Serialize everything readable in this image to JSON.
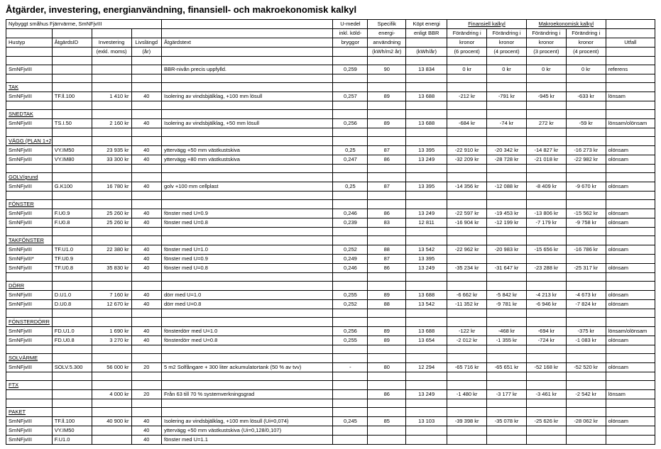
{
  "title": "Åtgärder, investering, energianvändning, finansiell- och makroekonomisk kalkyl",
  "left_group": "Nybyggt småhus Fjärrvärme, SmNFjvIII",
  "fin_group": "Finansiell kalkyl",
  "makro_group": "Makroekonomisk kalkyl",
  "headers": {
    "hustyp": "Hustyp",
    "atgID": "ÅtgärdsID",
    "invest1": "Investering",
    "invest2": "(exkl. moms)",
    "livs1": "Livslängd",
    "livs2": "(år)",
    "atgtext": "Åtgärdstext",
    "umedel1": "U-medel",
    "umedel2": "inkl. köld-",
    "umedel3": "bryggor",
    "spec1": "Specifik",
    "spec2": "energi-",
    "spec3": "användning",
    "spec4": "(kWh/m2 år)",
    "kopt1": "Köpt energi",
    "kopt2": "enligt BBR",
    "kopt3": "(kWh/år)",
    "for1": "Förändring i",
    "for2": "kronor",
    "p6": "(6 procent)",
    "p4": "(4 procent)",
    "p3": "(3 procent)",
    "utfall": "Utfall"
  },
  "rows": [
    {
      "type": "data",
      "c": [
        "SmNFjvIII",
        "",
        "",
        "",
        "BBR-nivån precis uppfylld.",
        "0,259",
        "90",
        "13 834",
        "0 kr",
        "0 kr",
        "0 kr",
        "0 kr",
        "referens"
      ]
    },
    {
      "type": "blank"
    },
    {
      "type": "section",
      "label": "TAK"
    },
    {
      "type": "data",
      "c": [
        "SmNFjvIII",
        "TF.ll.100",
        "1 410 kr",
        "40",
        "Isolering av vindsbjälklag, +100 mm lösull",
        "0,257",
        "89",
        "13 688",
        "-212 kr",
        "-791 kr",
        "-945 kr",
        "-633 kr",
        "lönsam"
      ]
    },
    {
      "type": "blank"
    },
    {
      "type": "section",
      "label": "SNEDTAK"
    },
    {
      "type": "data",
      "c": [
        "SmNFjvIII",
        "TS.I.50",
        "2 160 kr",
        "40",
        "Isolering av vindsbjälklag, +50 mm lösull",
        "0,256",
        "89",
        "13 688",
        "-684 kr",
        "-74 kr",
        "272 kr",
        "-59 kr",
        "lönsam/olönsam"
      ]
    },
    {
      "type": "blank"
    },
    {
      "type": "section",
      "label": "VÄGG (PLAN 1+2)"
    },
    {
      "type": "data",
      "c": [
        "SmNFjvIII",
        "VY.IM50",
        "23 935 kr",
        "40",
        "yttervägg +50 mm västkustskiva",
        "0,25",
        "87",
        "13 395",
        "-22 910 kr",
        "-20 342 kr",
        "-14 827 kr",
        "-16 273 kr",
        "olönsam"
      ]
    },
    {
      "type": "data",
      "c": [
        "SmNFjvIII",
        "VY.IM80",
        "33 300 kr",
        "40",
        "yttervägg +80 mm västkustskiva",
        "0,247",
        "86",
        "13 249",
        "-32 209 kr",
        "-28 728 kr",
        "-21 018 kr",
        "-22 982 kr",
        "olönsam"
      ]
    },
    {
      "type": "blank"
    },
    {
      "type": "section",
      "label": "GOLV/grund"
    },
    {
      "type": "data",
      "c": [
        "SmNFjvIII",
        "G.K100",
        "16 780 kr",
        "40",
        "golv +100 mm cellplast",
        "0,25",
        "87",
        "13 395",
        "-14 356 kr",
        "-12 088 kr",
        "-8 409 kr",
        "-9 670 kr",
        "olönsam"
      ]
    },
    {
      "type": "blank"
    },
    {
      "type": "section",
      "label": "FÖNSTER"
    },
    {
      "type": "data",
      "c": [
        "SmNFjvIII",
        "F.U0.9",
        "25 260 kr",
        "40",
        "fönster med U=0.9",
        "0,246",
        "86",
        "13 249",
        "-22 597 kr",
        "-19 453 kr",
        "-13 806 kr",
        "-15 562 kr",
        "olönsam"
      ]
    },
    {
      "type": "data",
      "c": [
        "SmNFjvIII",
        "F.U0.8",
        "25 260 kr",
        "40",
        "fönster med U=0.8",
        "0,239",
        "83",
        "12 811",
        "-16 904 kr",
        "-12 199 kr",
        "-7 179 kr",
        "-9 758 kr",
        "olönsam"
      ]
    },
    {
      "type": "blank"
    },
    {
      "type": "section",
      "label": "TAKFÖNSTER"
    },
    {
      "type": "data",
      "c": [
        "SmNFjvIII",
        "TF.U1.0",
        "22 380 kr",
        "40",
        "fönster med U=1.0",
        "0,252",
        "88",
        "13 542",
        "-22 962 kr",
        "-20 983 kr",
        "-15 656 kr",
        "-16 786 kr",
        "olönsam"
      ]
    },
    {
      "type": "data",
      "c": [
        "SmNFjvIII*",
        "TF.U0.9",
        "",
        "40",
        "fönster med U=0.9",
        "0,249",
        "87",
        "13 395",
        "",
        "",
        "",
        "",
        ""
      ]
    },
    {
      "type": "data",
      "c": [
        "SmNFjvIII",
        "TF.U0.8",
        "35 830 kr",
        "40",
        "fönster med U=0.8",
        "0,246",
        "86",
        "13 249",
        "-35 234 kr",
        "-31 647 kr",
        "-23 288 kr",
        "-25 317 kr",
        "olönsam"
      ]
    },
    {
      "type": "blank"
    },
    {
      "type": "section",
      "label": "DÖRR"
    },
    {
      "type": "data",
      "c": [
        "SmNFjvIII",
        "D.U1.0",
        "7 160 kr",
        "40",
        "dörr med U=1.0",
        "0,255",
        "89",
        "13 688",
        "-6 662 kr",
        "-5 842 kr",
        "-4 213 kr",
        "-4 673 kr",
        "olönsam"
      ]
    },
    {
      "type": "data",
      "c": [
        "SmNFjvIII",
        "D.U0.8",
        "12 670 kr",
        "40",
        "dörr med U=0.8",
        "0,252",
        "88",
        "13 542",
        "-11 352 kr",
        "-9 781 kr",
        "-6 946 kr",
        "-7 824 kr",
        "olönsam"
      ]
    },
    {
      "type": "blank"
    },
    {
      "type": "section",
      "label": "FÖNSTERDÖRR"
    },
    {
      "type": "data",
      "c": [
        "SmNFjvIII",
        "FD.U1.0",
        "1 690 kr",
        "40",
        "fönsterdörr med U=1.0",
        "0,256",
        "89",
        "13 688",
        "-122 kr",
        "-468 kr",
        "-694 kr",
        "-375 kr",
        "lönsam/olönsam"
      ]
    },
    {
      "type": "data",
      "c": [
        "SmNFjvIII",
        "FD.U0.8",
        "3 270 kr",
        "40",
        "fönsterdörr med U=0.8",
        "0,255",
        "89",
        "13 654",
        "-2 012 kr",
        "-1 355 kr",
        "-724 kr",
        "-1 083 kr",
        "olönsam"
      ]
    },
    {
      "type": "blank"
    },
    {
      "type": "section",
      "label": "SOLVÄRME"
    },
    {
      "type": "data",
      "c": [
        "SmNFjvIII",
        "SOLV.5.300",
        "56 000 kr",
        "20",
        "5 m2 Solfångare + 300 liter ackumulatortank (50 % av tvv)",
        "-",
        "80",
        "12 294",
        "-65 716 kr",
        "-65 651 kr",
        "-52 168 kr",
        "-52 520 kr",
        "olönsam"
      ]
    },
    {
      "type": "blank"
    },
    {
      "type": "section",
      "label": "FTX"
    },
    {
      "type": "data",
      "c": [
        "",
        "",
        "4 000 kr",
        "20",
        "Från 63 till 70 % systemverkningsgrad",
        "",
        "86",
        "13 249",
        "-1 480 kr",
        "-3 177 kr",
        "-3 461 kr",
        "-2 542 kr",
        "lönsam"
      ]
    },
    {
      "type": "blank"
    },
    {
      "type": "section",
      "label": "PAKET"
    },
    {
      "type": "data",
      "c": [
        "SmNFjvIII",
        "TF.ll.100",
        "40 900 kr",
        "40",
        "Isolering av vindsbjälklag, +100 mm lösull (Ui=0,074)",
        "0,245",
        "85",
        "13 103",
        "-39 398 kr",
        "-35 078 kr",
        "-25 626 kr",
        "-28 062 kr",
        "olönsam"
      ]
    },
    {
      "type": "data",
      "c": [
        "SmNFjvIII",
        "VY.IM50",
        "",
        "40",
        "yttervägg +50 mm västkustskiva (Ui=0,128/0,107)",
        "",
        "",
        "",
        "",
        "",
        "",
        "",
        ""
      ]
    },
    {
      "type": "data",
      "c": [
        "SmNFjvIII",
        "F.U1.0",
        "",
        "40",
        "fönster med U=1.1",
        "",
        "",
        "",
        "",
        "",
        "",
        "",
        ""
      ]
    }
  ]
}
